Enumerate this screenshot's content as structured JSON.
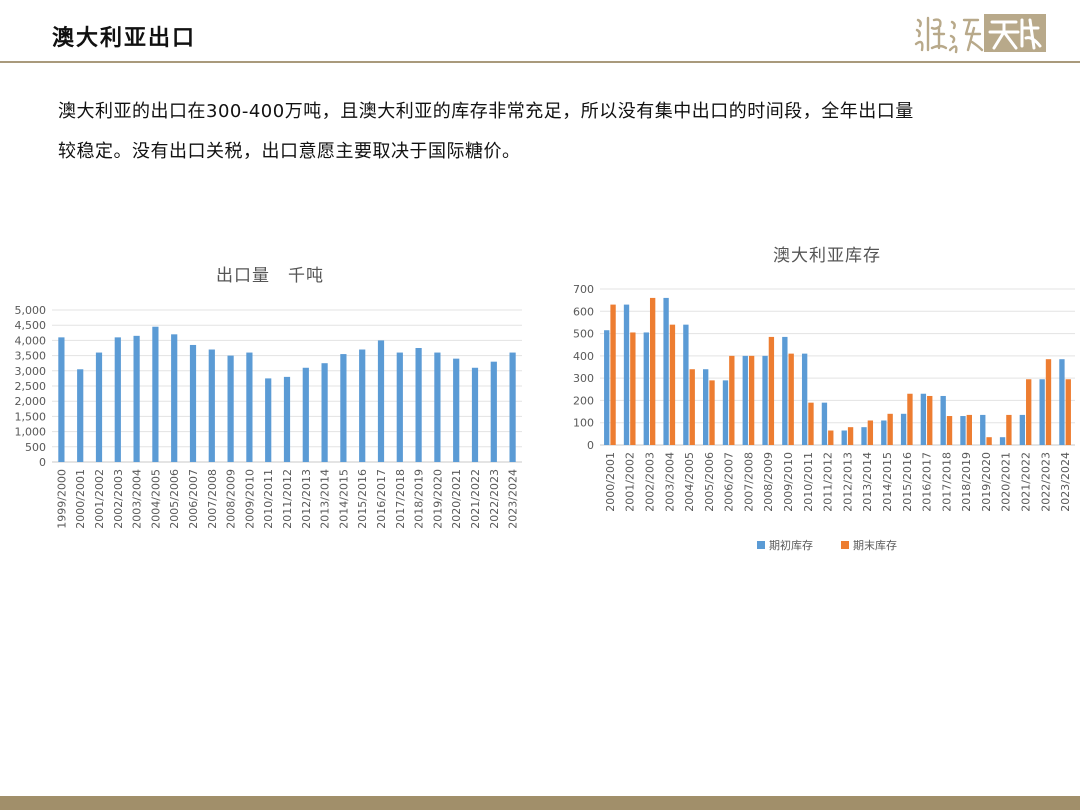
{
  "header": {
    "title": "澳大利亚出口",
    "logo_text": "湿浅天成"
  },
  "intro": {
    "line1": "澳大利亚的出口在300-400万吨，且澳大利亚的库存非常充足，所以没有集中出口的时间段，全年出口量",
    "line2": "较稳定。没有出口关税，出口意愿主要取决于国际糖价。"
  },
  "colors": {
    "accent": "#a99a7c",
    "footer": "#a18f6a",
    "series_blue": "#5b9bd5",
    "series_orange": "#ed7d31"
  },
  "chart_data": [
    {
      "type": "bar",
      "title": "出口量　千吨",
      "categories": [
        "1999/2000",
        "2000/2001",
        "2001/2002",
        "2002/2003",
        "2003/2004",
        "2004/2005",
        "2005/2006",
        "2006/2007",
        "2007/2008",
        "2008/2009",
        "2009/2010",
        "2010/2011",
        "2011/2012",
        "2012/2013",
        "2013/2014",
        "2014/2015",
        "2015/2016",
        "2016/2017",
        "2017/2018",
        "2018/2019",
        "2019/2020",
        "2020/2021",
        "2021/2022",
        "2022/2023",
        "2023/2024"
      ],
      "series": [
        {
          "values": [
            4100,
            3050,
            3600,
            4100,
            4150,
            4450,
            4200,
            3850,
            3700,
            3500,
            3600,
            2750,
            2800,
            3100,
            3250,
            3550,
            3700,
            4000,
            3600,
            3750,
            3600,
            3400,
            3100,
            3300,
            3600
          ],
          "color": "#5b9bd5"
        }
      ],
      "ylim": [
        0,
        5000
      ],
      "yticks": [
        "0",
        "500",
        "1,000",
        "1,500",
        "2,000",
        "2,500",
        "3,000",
        "3,500",
        "4,000",
        "4,500",
        "5,000"
      ],
      "grid": true,
      "legend": "none"
    },
    {
      "type": "bar",
      "title": "澳大利亚库存",
      "categories": [
        "2000/2001",
        "2001/2002",
        "2002/2003",
        "2003/2004",
        "2004/2005",
        "2005/2006",
        "2006/2007",
        "2007/2008",
        "2008/2009",
        "2009/2010",
        "2010/2011",
        "2011/2012",
        "2012/2013",
        "2013/2014",
        "2014/2015",
        "2015/2016",
        "2016/2017",
        "2017/2018",
        "2018/2019",
        "2019/2020",
        "2020/2021",
        "2021/2022",
        "2022/2023",
        "2023/2024"
      ],
      "series": [
        {
          "name": "期初库存",
          "color": "#5b9bd5",
          "values": [
            515,
            630,
            505,
            660,
            540,
            340,
            290,
            400,
            400,
            485,
            410,
            190,
            65,
            80,
            110,
            140,
            230,
            220,
            130,
            135,
            35,
            135,
            295,
            385
          ]
        },
        {
          "name": "期末库存",
          "color": "#ed7d31",
          "values": [
            630,
            505,
            660,
            540,
            340,
            290,
            400,
            400,
            485,
            410,
            190,
            65,
            80,
            110,
            140,
            230,
            220,
            130,
            135,
            35,
            135,
            295,
            385,
            295
          ]
        }
      ],
      "ylim": [
        0,
        700
      ],
      "yticks": [
        "0",
        "100",
        "200",
        "300",
        "400",
        "500",
        "600",
        "700"
      ],
      "grid": true,
      "legend": "bottom"
    }
  ]
}
